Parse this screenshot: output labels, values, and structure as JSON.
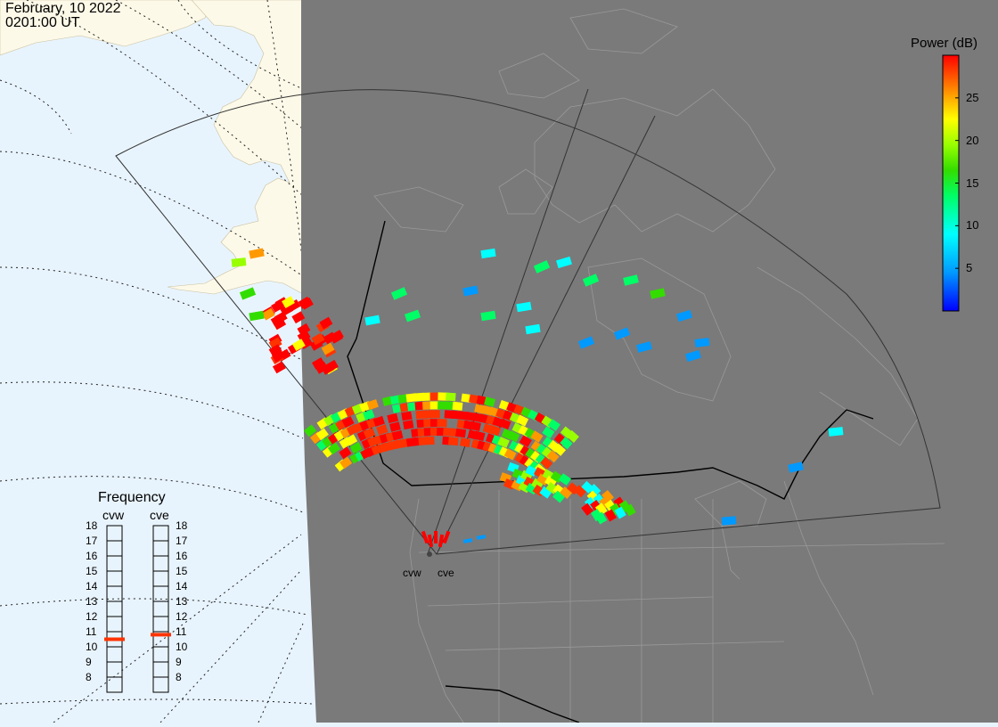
{
  "header": {
    "date": "February, 10 2022",
    "time": "0201:00 UT"
  },
  "colorbar": {
    "title": "Power (dB)",
    "ticks": [
      "25",
      "20",
      "15",
      "10",
      "5"
    ],
    "tick_values": [
      25,
      20,
      15,
      10,
      5
    ],
    "range": [
      0,
      30
    ],
    "colors": [
      "#0000ff",
      "#0099ff",
      "#00ffff",
      "#00ff66",
      "#33dd00",
      "#99ff00",
      "#ffff00",
      "#ff9900",
      "#ff3300",
      "#ff0000"
    ]
  },
  "frequency": {
    "title": "Frequency",
    "radars": [
      "cvw",
      "cve"
    ],
    "scale": [
      "18",
      "17",
      "16",
      "15",
      "14",
      "13",
      "12",
      "11",
      "10",
      "9",
      "8"
    ],
    "scale_values": [
      18,
      17,
      16,
      15,
      14,
      13,
      12,
      11,
      10,
      9,
      8
    ],
    "cvw_mhz": 10.5,
    "cve_mhz": 10.8,
    "marker_color": "#ff3300"
  },
  "sites": {
    "cvw": "cvw",
    "cve": "cve"
  },
  "map_colors": {
    "ocean": "#e8f4fd",
    "land": "#fdf9e8",
    "night": "#7a7a7a",
    "borders": "#000000",
    "coast_night": "#9a9a9a"
  }
}
